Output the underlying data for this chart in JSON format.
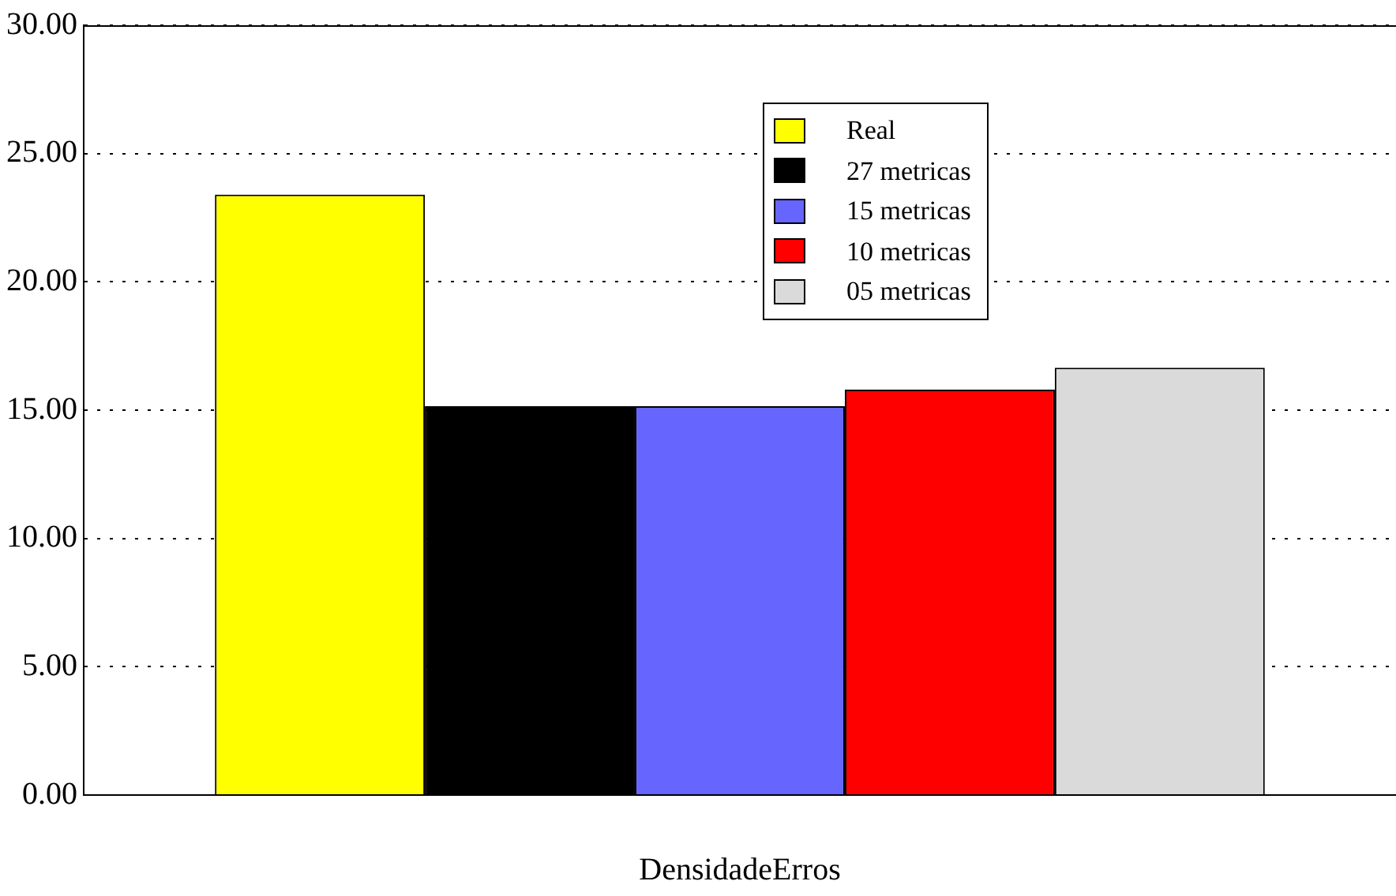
{
  "chart_data": {
    "type": "bar",
    "xlabel": "DensidadeErros",
    "categories": [
      null
    ],
    "series": [
      {
        "name": "Real",
        "color": "#ffff00",
        "values": [
          23.4
        ]
      },
      {
        "name": "27 metricas",
        "color": "#000000",
        "values": [
          15.15
        ]
      },
      {
        "name": "15 metricas",
        "color": "#6666ff",
        "values": [
          15.15
        ]
      },
      {
        "name": "10 metricas",
        "color": "#ff0000",
        "values": [
          15.8
        ]
      },
      {
        "name": "05 metricas",
        "color": "#dadada",
        "values": [
          16.65
        ]
      }
    ],
    "ylim": [
      0,
      30
    ],
    "yticks": [
      {
        "value": 0,
        "label": "0.00"
      },
      {
        "value": 5,
        "label": "5.00"
      },
      {
        "value": 10,
        "label": "10.00"
      },
      {
        "value": 15,
        "label": "15.00"
      },
      {
        "value": 20,
        "label": "20.00"
      },
      {
        "value": 25,
        "label": "25.00"
      },
      {
        "value": 30,
        "label": "30.00"
      }
    ],
    "grid": "y",
    "legend": "top"
  }
}
